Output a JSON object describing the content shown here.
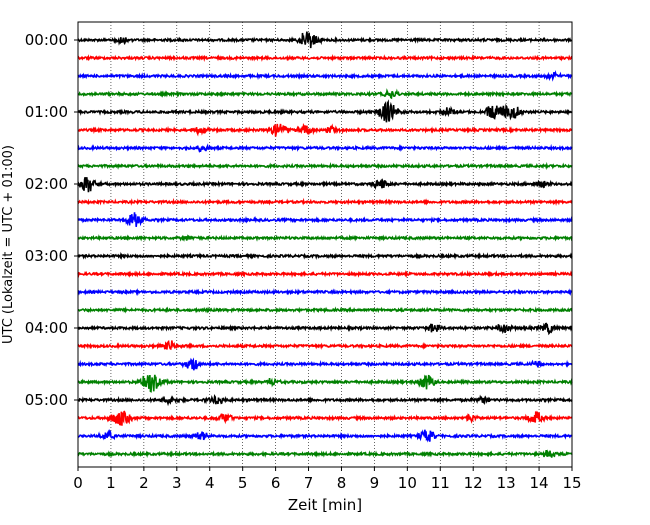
{
  "chart_data": {
    "type": "line",
    "title": "",
    "xlabel": "Zeit  [min]",
    "ylabel": "UTC (Lokalzeit = UTC + 01:00)",
    "xlim": [
      0,
      15
    ],
    "xticks": [
      0,
      1,
      2,
      3,
      4,
      5,
      6,
      7,
      8,
      9,
      10,
      11,
      12,
      13,
      14,
      15
    ],
    "grid": "vertical dotted",
    "legend": "none",
    "y_tick_labels": [
      "00:00",
      "01:00",
      "02:00",
      "03:00",
      "04:00",
      "05:00"
    ],
    "trace_colors": [
      "#000000",
      "#ff0000",
      "#0000ff",
      "#008000"
    ],
    "traces_per_hour": 4,
    "trace_interval_min": 15,
    "series": [
      {
        "start": "00:00",
        "events": [
          {
            "t": 1.3,
            "amp": 0.3
          },
          {
            "t": 7.0,
            "amp": 0.8
          }
        ]
      },
      {
        "start": "00:15",
        "events": []
      },
      {
        "start": "00:30",
        "events": [
          {
            "t": 14.4,
            "amp": 0.3
          }
        ]
      },
      {
        "start": "00:45",
        "events": [
          {
            "t": 9.5,
            "amp": 0.3
          }
        ]
      },
      {
        "start": "01:00",
        "events": [
          {
            "t": 9.4,
            "amp": 0.9
          },
          {
            "t": 11.2,
            "amp": 0.4
          },
          {
            "t": 12.6,
            "amp": 0.6
          },
          {
            "t": 13.1,
            "amp": 0.8
          }
        ]
      },
      {
        "start": "01:15",
        "events": [
          {
            "t": 3.7,
            "amp": 0.3
          },
          {
            "t": 6.1,
            "amp": 0.6
          },
          {
            "t": 6.9,
            "amp": 0.4
          },
          {
            "t": 7.7,
            "amp": 0.3
          }
        ]
      },
      {
        "start": "01:30",
        "events": [
          {
            "t": 3.8,
            "amp": 0.3
          }
        ]
      },
      {
        "start": "01:45",
        "events": []
      },
      {
        "start": "02:00",
        "events": [
          {
            "t": 0.3,
            "amp": 0.7
          },
          {
            "t": 9.2,
            "amp": 0.4
          },
          {
            "t": 14.1,
            "amp": 0.3
          }
        ]
      },
      {
        "start": "02:15",
        "events": []
      },
      {
        "start": "02:30",
        "events": [
          {
            "t": 1.7,
            "amp": 0.7
          }
        ]
      },
      {
        "start": "02:45",
        "events": [
          {
            "t": 3.3,
            "amp": 0.2
          }
        ]
      },
      {
        "start": "03:00",
        "events": []
      },
      {
        "start": "03:15",
        "events": []
      },
      {
        "start": "03:30",
        "events": []
      },
      {
        "start": "03:45",
        "events": []
      },
      {
        "start": "04:00",
        "events": [
          {
            "t": 10.8,
            "amp": 0.4
          },
          {
            "t": 12.9,
            "amp": 0.4
          },
          {
            "t": 14.3,
            "amp": 0.4
          }
        ]
      },
      {
        "start": "04:15",
        "events": [
          {
            "t": 2.8,
            "amp": 0.4
          }
        ]
      },
      {
        "start": "04:30",
        "events": [
          {
            "t": 3.5,
            "amp": 0.5
          },
          {
            "t": 14.0,
            "amp": 0.3
          }
        ]
      },
      {
        "start": "04:45",
        "events": [
          {
            "t": 2.2,
            "amp": 0.8
          },
          {
            "t": 5.9,
            "amp": 0.3
          },
          {
            "t": 10.6,
            "amp": 0.6
          }
        ]
      },
      {
        "start": "05:00",
        "events": [
          {
            "t": 2.8,
            "amp": 0.3
          },
          {
            "t": 4.2,
            "amp": 0.4
          },
          {
            "t": 12.3,
            "amp": 0.3
          }
        ]
      },
      {
        "start": "05:15",
        "events": [
          {
            "t": 1.3,
            "amp": 0.7
          },
          {
            "t": 4.5,
            "amp": 0.4
          },
          {
            "t": 11.9,
            "amp": 0.3
          },
          {
            "t": 13.9,
            "amp": 0.5
          }
        ]
      },
      {
        "start": "05:30",
        "events": [
          {
            "t": 0.9,
            "amp": 0.4
          },
          {
            "t": 3.7,
            "amp": 0.4
          },
          {
            "t": 10.6,
            "amp": 0.5
          }
        ]
      },
      {
        "start": "05:45",
        "events": [
          {
            "t": 14.3,
            "amp": 0.3
          }
        ]
      }
    ]
  }
}
